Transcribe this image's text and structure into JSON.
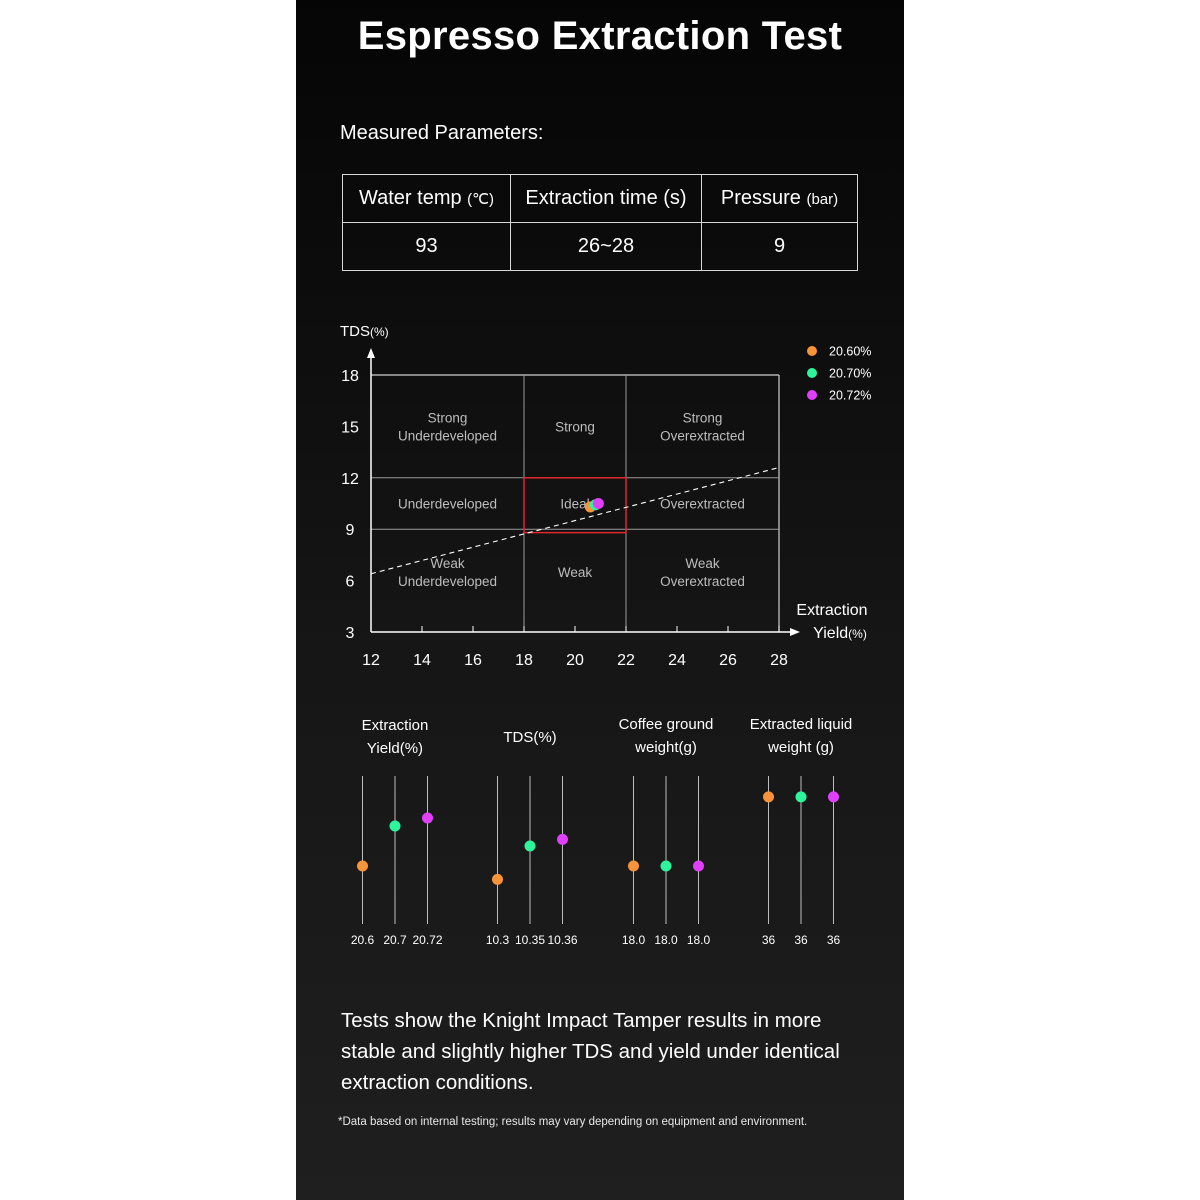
{
  "title": "Espresso Extraction Test",
  "parameters": {
    "heading": "Measured Parameters:",
    "headers": [
      {
        "label": "Water temp ",
        "unit": "(℃)"
      },
      {
        "label": "Extraction time (s)",
        "unit": ""
      },
      {
        "label": "Pressure ",
        "unit": "(bar)"
      }
    ],
    "values": [
      "93",
      "26~28",
      "9"
    ]
  },
  "chart_data": [
    {
      "type": "scatter",
      "ylabel": "TDS",
      "ylabel_unit": "(%)",
      "xlabel_line1": "Extraction",
      "xlabel_line2": "Yield",
      "xlabel_unit": "(%)",
      "xlim": [
        12,
        28
      ],
      "ylim": [
        3,
        18
      ],
      "x_ticks": [
        "12",
        "14",
        "16",
        "18",
        "20",
        "22",
        "24",
        "26",
        "28"
      ],
      "y_ticks": [
        "3",
        "6",
        "9",
        "12",
        "15",
        "18"
      ],
      "x_dividers": [
        18,
        22
      ],
      "y_dividers": [
        9,
        12
      ],
      "regions": [
        {
          "lines": [
            "Strong",
            "Underdeveloped"
          ],
          "x": 15,
          "y": 15
        },
        {
          "lines": [
            "Strong"
          ],
          "x": 20,
          "y": 15
        },
        {
          "lines": [
            "Strong",
            "Overextracted"
          ],
          "x": 25,
          "y": 15
        },
        {
          "lines": [
            "Underdeveloped"
          ],
          "x": 15,
          "y": 10.5
        },
        {
          "lines": [
            "Ideal"
          ],
          "x": 20,
          "y": 10.5
        },
        {
          "lines": [
            "Overextracted"
          ],
          "x": 25,
          "y": 10.5
        },
        {
          "lines": [
            "Weak",
            "Underdeveloped"
          ],
          "x": 15,
          "y": 6.5
        },
        {
          "lines": [
            "Weak"
          ],
          "x": 20,
          "y": 6.5
        },
        {
          "lines": [
            "Weak",
            "Overextracted"
          ],
          "x": 25,
          "y": 6.5
        }
      ],
      "ideal_box": {
        "x": [
          18,
          22
        ],
        "y": [
          8.8,
          12
        ]
      },
      "trend_line": {
        "x": [
          12,
          28
        ],
        "y": [
          6.4,
          12.6
        ]
      },
      "series": [
        {
          "name": "20.60%",
          "color": "#f7943a",
          "x": 20.6,
          "y": 10.3
        },
        {
          "name": "20.70%",
          "color": "#2ef59b",
          "x": 20.7,
          "y": 10.35
        },
        {
          "name": "20.72%",
          "color": "#e040fb",
          "x": 20.72,
          "y": 10.36
        }
      ]
    },
    {
      "type": "dot",
      "groups": [
        {
          "title": [
            "Extraction",
            "Yield(%)"
          ],
          "labels": [
            "20.6",
            "20.7",
            "20.72"
          ],
          "values": [
            20.6,
            20.7,
            20.72
          ],
          "range": [
            20.5,
            20.8
          ]
        },
        {
          "title": [
            "TDS(%)"
          ],
          "labels": [
            "10.3",
            "10.35",
            "10.36"
          ],
          "values": [
            10.3,
            10.35,
            10.36
          ],
          "range": [
            10.26,
            10.44
          ]
        },
        {
          "title": [
            "Coffee ground",
            "weight(g)"
          ],
          "labels": [
            "18.0",
            "18.0",
            "18.0"
          ],
          "values": [
            18.0,
            18.0,
            18.0
          ],
          "range": [
            17.8,
            18.4
          ]
        },
        {
          "title": [
            "Extracted liquid",
            "weight (g)"
          ],
          "labels": [
            "36",
            "36",
            "36"
          ],
          "values": [
            36,
            36,
            36
          ],
          "range": [
            34,
            36.2
          ]
        }
      ],
      "colors": [
        "#f7943a",
        "#2ef59b",
        "#e040fb"
      ]
    }
  ],
  "conclusion": "Tests show the Knight Impact Tamper results in more stable and slightly higher TDS and yield under identical extraction conditions.",
  "footnote": "*Data based on internal testing; results may vary depending on equipment and environment."
}
